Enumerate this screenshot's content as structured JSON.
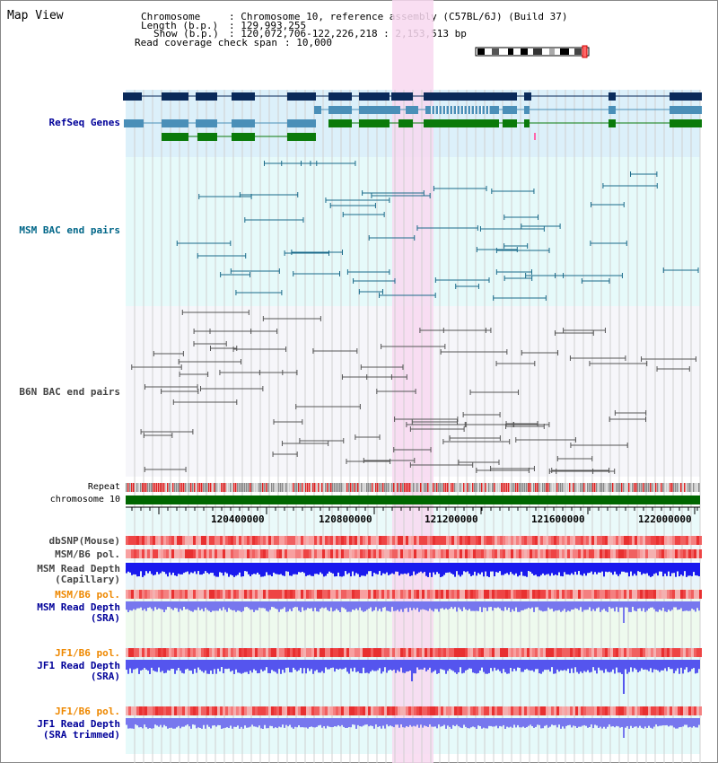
{
  "page": {
    "title": "Map View"
  },
  "info": {
    "chromosome_key": "Chromosome",
    "chromosome_val": ": Chromosome 10, reference assembly (C57BL/6J) (Build 37)",
    "length_key": "Length (b.p.)",
    "length_val": ": 129,993,255",
    "show_key": "Show (b.p.)",
    "show_val": ": 120,072,706-122,226,218 : 2,153,513 bp",
    "coverage_key": "Read coverage check span",
    "coverage_val": ": 10,000"
  },
  "tracks": {
    "refseq": "RefSeq Genes",
    "msm_bac": "MSM BAC end pairs",
    "b6n_bac": "B6N BAC end pairs",
    "repeat": "Repeat",
    "chromosome": "chromosome 10",
    "dbsnp": "dbSNP(Mouse)",
    "msm_b6_pol": "MSM/B6 pol.",
    "msm_read_depth_cap_1": "MSM Read Depth",
    "msm_read_depth_cap_2": "(Capillary)",
    "msm_b6_pol_2": "MSM/B6 pol.",
    "msm_read_depth_sra_1": "MSM Read Depth",
    "msm_read_depth_sra_2": "(SRA)",
    "jf1_b6_pol": "JF1/B6 pol.",
    "jf1_read_depth_sra_1": "JF1 Read Depth",
    "jf1_read_depth_sra_2": "(SRA)",
    "jf1_b6_pol_2": "JF1/B6 pol.",
    "jf1_read_depth_trim_1": "JF1 Read Depth",
    "jf1_read_depth_trim_2": "(SRA trimmed)"
  },
  "axis": {
    "ticks": [
      "120400000",
      "120800000",
      "121200000",
      "121600000",
      "122000000"
    ]
  },
  "colors": {
    "refseq_label": "#000099",
    "msm_bac_label": "#006688",
    "b6n_bac_label": "#444444",
    "pol_label_orange": "#ee8800",
    "depth_label_blue": "#000099",
    "highlight": "#f8d8f0",
    "chrom_green": "#006600"
  }
}
